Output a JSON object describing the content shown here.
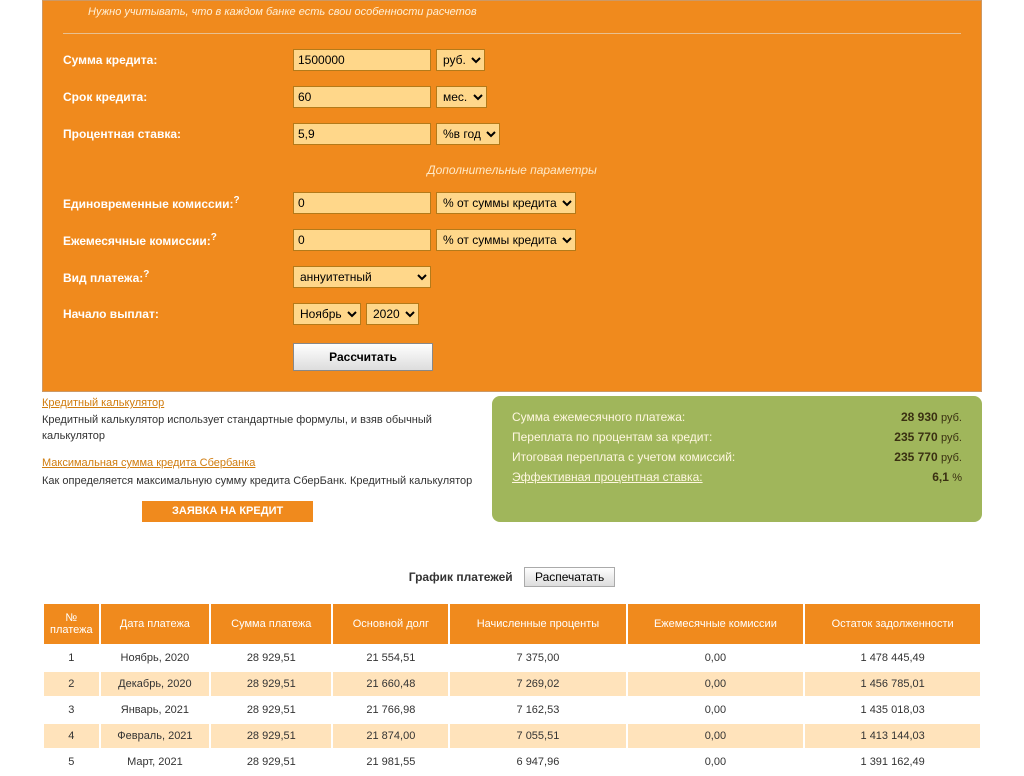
{
  "colors": {
    "panel_bg": "#f08a1d",
    "input_bg": "#ffd78a",
    "summary_bg": "#a0b65b",
    "row_even_bg": "#ffe3bb"
  },
  "warn_text": "Нужно учитывать, что в каждом банке есть свои особенности расчетов",
  "fields": {
    "amount_label": "Сумма кредита:",
    "amount_value": "1500000",
    "amount_unit": "руб.",
    "term_label": "Срок кредита:",
    "term_value": "60",
    "term_unit": "мес.",
    "rate_label": "Процентная ставка:",
    "rate_value": "5,9",
    "rate_unit": "%в год",
    "extra_heading": "Дополнительные параметры",
    "onetime_label": "Единовременные комиссии:",
    "onetime_q": "?",
    "onetime_value": "0",
    "onetime_unit": "% от суммы кредита",
    "monthly_label": "Ежемесячные комиссии:",
    "monthly_q": "?",
    "monthly_value": "0",
    "monthly_unit": "% от суммы кредита",
    "type_label": "Вид платежа:",
    "type_q": "?",
    "type_value": "аннуитетный",
    "start_label": "Начало выплат:",
    "start_month": "Ноябрь",
    "start_year": "2020",
    "calc_btn": "Рассчитать"
  },
  "links": {
    "l1_title": "Кредитный калькулятор",
    "l1_text": "Кредитный калькулятор использует стандартные формулы, и взяв обычный калькулятор",
    "l2_title": "Максимальная сумма кредита Сбербанка",
    "l2_text": "Как определяется максимальную сумму кредита СберБанк. Кредитный калькулятор",
    "apply": "ЗАЯВКА НА КРЕДИТ"
  },
  "summary": {
    "r1_label": "Сумма ежемесячного платежа:",
    "r1_value": "28 930",
    "r1_unit": "руб.",
    "r2_label": "Переплата по процентам за кредит:",
    "r2_value": "235 770",
    "r2_unit": "руб.",
    "r3_label": "Итоговая переплата с учетом комиссий:",
    "r3_value": "235 770",
    "r3_unit": "руб.",
    "r4_label": "Эффективная процентная ставка:",
    "r4_value": "6,1",
    "r4_unit": "%"
  },
  "schedule": {
    "title": "График платежей",
    "print_btn": "Распечатать",
    "columns": [
      "№ платежа",
      "Дата платежа",
      "Сумма платежа",
      "Основной долг",
      "Начисленные проценты",
      "Ежемесячные комиссии",
      "Остаток задолженности"
    ],
    "rows": [
      [
        "1",
        "Ноябрь, 2020",
        "28 929,51",
        "21 554,51",
        "7 375,00",
        "0,00",
        "1 478 445,49"
      ],
      [
        "2",
        "Декабрь, 2020",
        "28 929,51",
        "21 660,48",
        "7 269,02",
        "0,00",
        "1 456 785,01"
      ],
      [
        "3",
        "Январь, 2021",
        "28 929,51",
        "21 766,98",
        "7 162,53",
        "0,00",
        "1 435 018,03"
      ],
      [
        "4",
        "Февраль, 2021",
        "28 929,51",
        "21 874,00",
        "7 055,51",
        "0,00",
        "1 413 144,03"
      ],
      [
        "5",
        "Март, 2021",
        "28 929,51",
        "21 981,55",
        "6 947,96",
        "0,00",
        "1 391 162,49"
      ]
    ]
  }
}
